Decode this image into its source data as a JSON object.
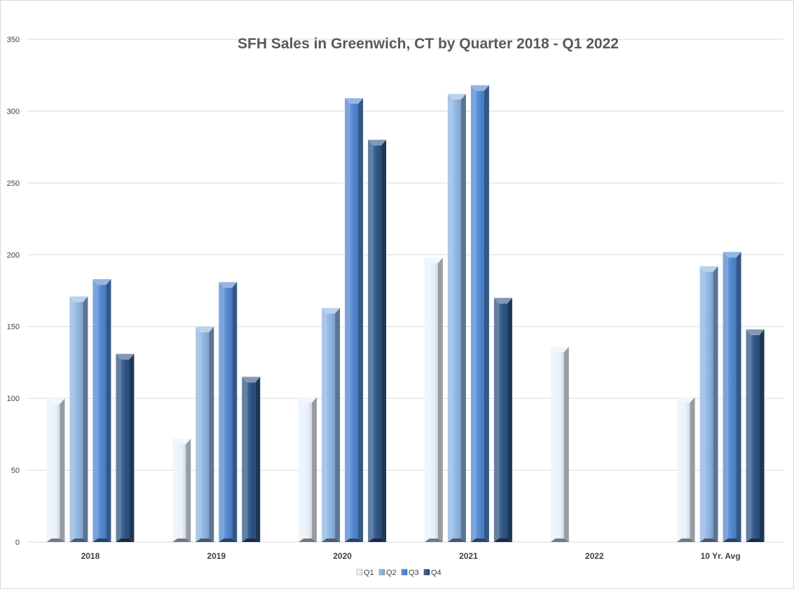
{
  "chart_data": {
    "type": "bar",
    "title": "SFH Sales in Greenwich, CT by Quarter 2018 - Q1 2022",
    "xlabel": "",
    "ylabel": "",
    "ylim": [
      0,
      350
    ],
    "yticks": [
      0,
      50,
      100,
      150,
      200,
      250,
      300,
      350
    ],
    "grid": true,
    "legend_position": "bottom",
    "categories": [
      "2018",
      "2019",
      "2020",
      "2021",
      "2022",
      "10 Yr. Avg"
    ],
    "series": [
      {
        "name": "Q1",
        "color": "#e8f1fa",
        "values": [
          100,
          72,
          101,
          198,
          136,
          101
        ]
      },
      {
        "name": "Q2",
        "color": "#8db4e2",
        "values": [
          171,
          150,
          163,
          312,
          null,
          192
        ]
      },
      {
        "name": "Q3",
        "color": "#4f86d0",
        "values": [
          183,
          181,
          309,
          318,
          null,
          202
        ]
      },
      {
        "name": "Q4",
        "color": "#2e5486",
        "values": [
          131,
          115,
          280,
          170,
          null,
          148
        ]
      }
    ]
  }
}
